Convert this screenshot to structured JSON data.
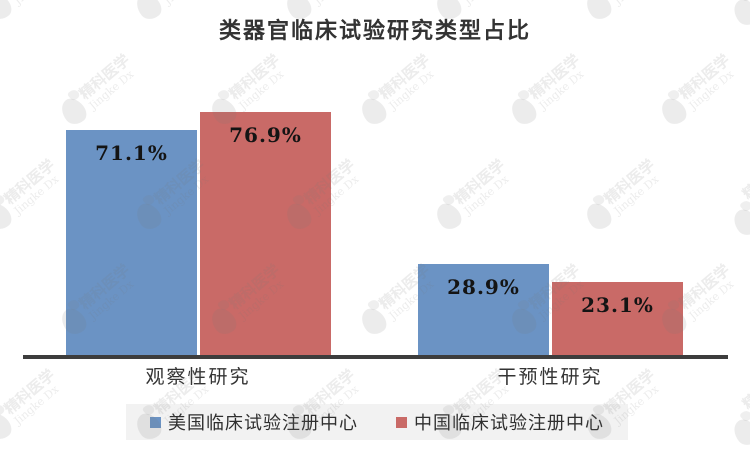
{
  "watermark": {
    "name_cn": "精科医学",
    "name_en": "Jingke Dx"
  },
  "colors": {
    "us_series": "#6b93c4",
    "cn_series": "#c96a67",
    "axis_line": "#3d3d3d",
    "value_label": "#141414",
    "legend_background": "#f2f2f2",
    "title_text": "#333333"
  },
  "chart_data": {
    "type": "bar",
    "title": "类器官临床试验研究类型占比",
    "categories": [
      "观察性研究",
      "干预性研究"
    ],
    "series": [
      {
        "name": "美国临床试验注册中心",
        "color": "#6b93c4",
        "values": [
          71.1,
          28.9
        ]
      },
      {
        "name": "中国临床试验注册中心",
        "color": "#c96a67",
        "values": [
          76.9,
          23.1
        ]
      }
    ],
    "value_labels": [
      [
        "71.1%",
        "28.9%"
      ],
      [
        "76.9%",
        "23.1%"
      ]
    ],
    "unit": "%",
    "ylim": [
      0,
      80
    ],
    "y_axis_visible": false,
    "grid": false,
    "legend_position": "bottom"
  }
}
